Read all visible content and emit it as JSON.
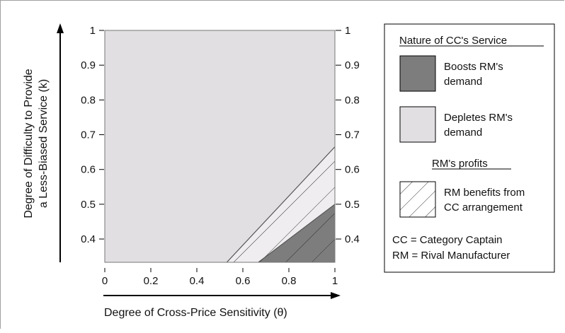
{
  "chart_data": {
    "type": "area",
    "xlabel": "Degree of Cross-Price Sensitivity (θ)",
    "ylabel": {
      "line1": "Degree of Difficulty to Provide",
      "line2": "a Less-Biased Service (k)"
    },
    "xlim": [
      0,
      1
    ],
    "ylim": [
      0.333,
      1
    ],
    "x_ticks": [
      "0",
      "0.2",
      "0.4",
      "0.6",
      "0.8",
      "1"
    ],
    "x_tick_values": [
      0,
      0.2,
      0.4,
      0.6,
      0.8,
      1
    ],
    "y_ticks": [
      "1",
      "0.9",
      "0.8",
      "0.7",
      "0.6",
      "0.5",
      "0.4"
    ],
    "y_tick_values": [
      1,
      0.9,
      0.8,
      0.7,
      0.6,
      0.5,
      0.4
    ],
    "regions": [
      {
        "name": "Depletes RM's demand",
        "fill": "#e2dfe2",
        "polygon": [
          [
            0,
            0.333
          ],
          [
            1,
            0.333
          ],
          [
            1,
            1
          ],
          [
            0,
            1
          ]
        ]
      },
      {
        "name": "RM benefits from CC arrangement",
        "fill": "#efedef",
        "hatch": true,
        "polygon": [
          [
            0.53,
            0.333
          ],
          [
            1,
            0.333
          ],
          [
            1,
            0.665
          ]
        ]
      },
      {
        "name": "Boosts RM's demand",
        "fill": "#7d7d7d",
        "hatch": true,
        "polygon": [
          [
            0.667,
            0.333
          ],
          [
            1,
            0.333
          ],
          [
            1,
            0.5
          ]
        ]
      }
    ],
    "legend": {
      "position": "right",
      "heading1": "Nature of CC's Service",
      "boosts": {
        "line1": "Boosts RM's",
        "line2": "demand",
        "color": "#7d7d7d"
      },
      "depletes": {
        "line1": "Depletes RM's",
        "line2": "demand",
        "color": "#e2dfe2"
      },
      "heading2": "RM's profits",
      "benefits": {
        "line1": "RM benefits from",
        "line2": "CC arrangement"
      },
      "note1": "CC = Category Captain",
      "note2": "RM = Rival Manufacturer"
    }
  }
}
